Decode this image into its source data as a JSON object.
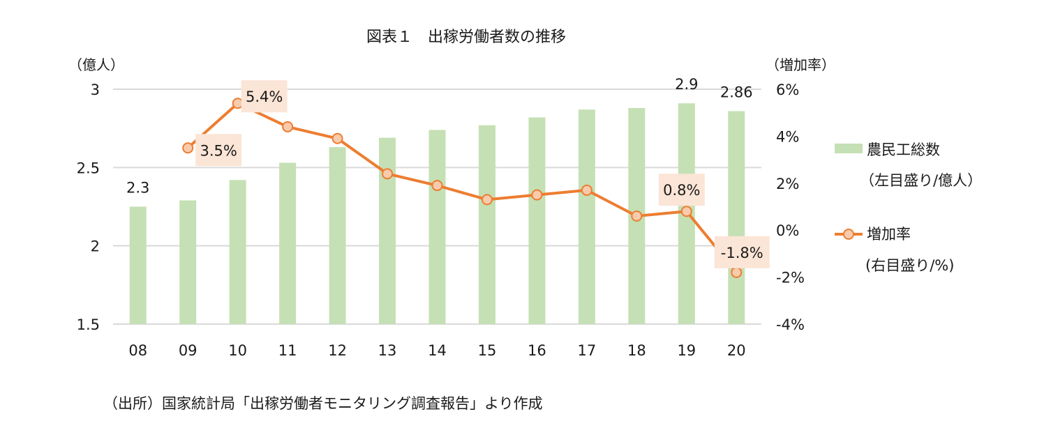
{
  "chart_data": {
    "type": "bar+line",
    "title": "図表１　出稼労働者数の推移",
    "categories": [
      "08",
      "09",
      "10",
      "11",
      "12",
      "13",
      "14",
      "15",
      "16",
      "17",
      "18",
      "19",
      "20"
    ],
    "series": [
      {
        "name": "農民工総数",
        "name_note": "（左目盛り/億人）",
        "type": "bar",
        "axis": "left",
        "color": "#c5e0b4",
        "values": [
          2.25,
          2.29,
          2.42,
          2.53,
          2.63,
          2.69,
          2.74,
          2.77,
          2.82,
          2.87,
          2.88,
          2.91,
          2.86
        ]
      },
      {
        "name": "増加率",
        "name_note": "(右目盛り/%)",
        "type": "line",
        "axis": "right",
        "color": "#ed7d31",
        "marker_fill": "#f8cbad",
        "values": [
          null,
          3.5,
          5.4,
          4.4,
          3.9,
          2.4,
          1.9,
          1.3,
          1.5,
          1.7,
          0.6,
          0.8,
          -1.8
        ]
      }
    ],
    "y_left": {
      "unit": "（億人）",
      "ylim": [
        1.5,
        3.0
      ],
      "ticks": [
        "1.5",
        "2",
        "2.5",
        "3"
      ],
      "tick_values": [
        1.5,
        2.0,
        2.5,
        3.0
      ]
    },
    "y_right": {
      "unit": "（増加率）",
      "ylim": [
        -4,
        6
      ],
      "ticks": [
        "-4%",
        "-2%",
        "0%",
        "2%",
        "4%",
        "6%"
      ],
      "tick_values": [
        -4,
        -2,
        0,
        2,
        4,
        6
      ]
    },
    "bar_labels": [
      {
        "index": 0,
        "text": "2.3"
      },
      {
        "index": 11,
        "text": "2.9"
      },
      {
        "index": 12,
        "text": "2.86"
      }
    ],
    "line_labels": [
      {
        "index": 1,
        "text": "3.5%"
      },
      {
        "index": 2,
        "text": "5.4%"
      },
      {
        "index": 11,
        "text": "0.8%"
      },
      {
        "index": 12,
        "text": "-1.8%"
      }
    ],
    "grid": true,
    "legend_position": "right"
  },
  "source": "（出所）国家統計局「出稼労働者モニタリング調査報告」より作成",
  "colors": {
    "grid": "#d9d9d9",
    "label_box": "#fbe5d6"
  }
}
